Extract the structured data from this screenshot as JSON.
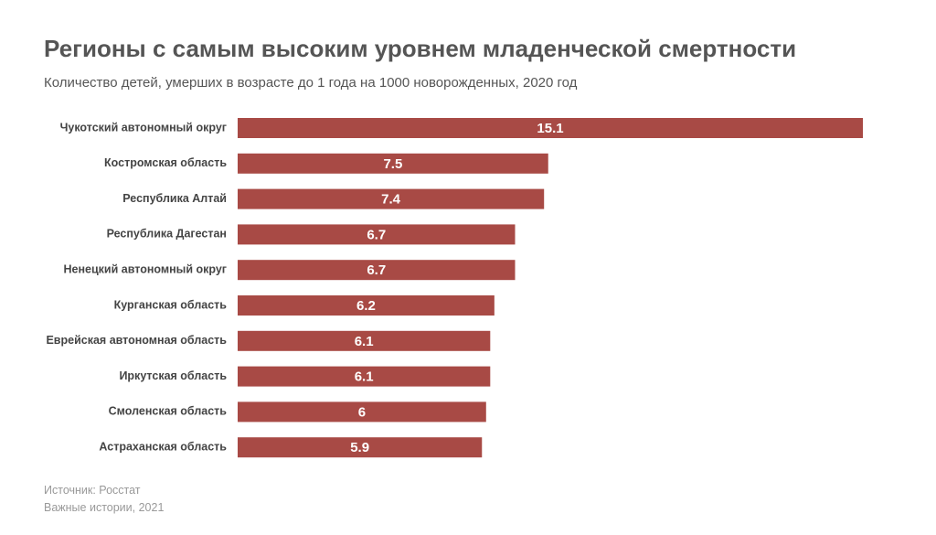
{
  "header": {
    "title": "Регионы с самым высоким уровнем младенческой смертности",
    "subtitle": "Количество детей, умерших в возрасте до 1 года на 1000 новорожденных, 2020 год"
  },
  "footer": {
    "source": "Источник: Росстат",
    "credit": "Важные истории, 2021"
  },
  "colors": {
    "bar": "#a84a45"
  },
  "chart_data": {
    "type": "bar",
    "orientation": "horizontal",
    "title": "Регионы с самым высоким уровнем младенческой смертности",
    "subtitle": "Количество детей, умерших в возрасте до 1 года на 1000 новорожденных, 2020 год",
    "xlabel": "",
    "ylabel": "",
    "grid": false,
    "legend": "none",
    "xlim": [
      0,
      15.1
    ],
    "categories": [
      "Чукотский автономный округ",
      "Костромская область",
      "Республика Алтай",
      "Республика Дагестан",
      "Ненецкий автономный округ",
      "Курганская область",
      "Еврейская автономная область",
      "Иркутская область",
      "Смоленская область",
      "Астраханская область"
    ],
    "values": [
      15.1,
      7.5,
      7.4,
      6.7,
      6.7,
      6.2,
      6.1,
      6.1,
      6,
      5.9
    ],
    "value_labels": [
      "15.1",
      "7.5",
      "7.4",
      "6.7",
      "6.7",
      "6.2",
      "6.1",
      "6.1",
      "6",
      "5.9"
    ]
  }
}
